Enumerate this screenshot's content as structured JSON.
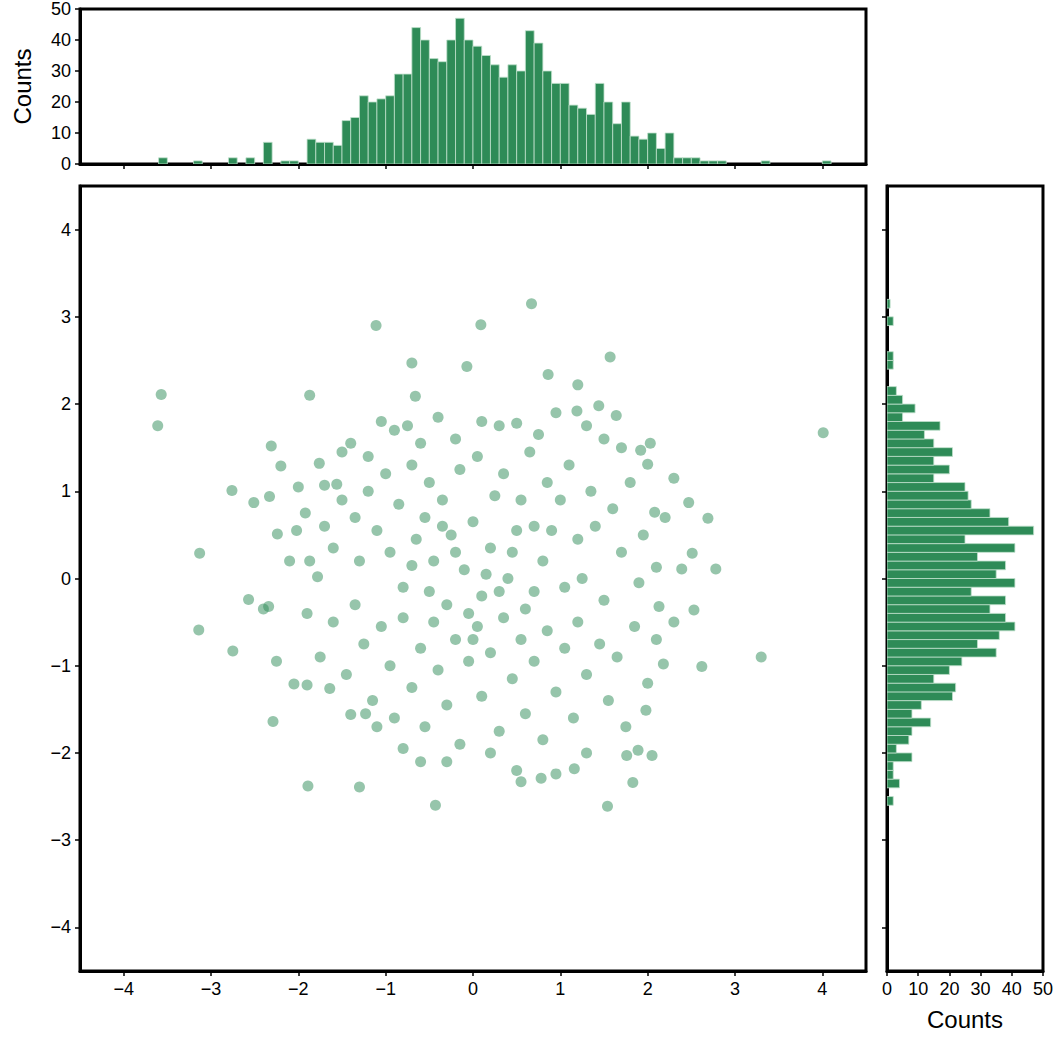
{
  "chart_data": [
    {
      "type": "scatter",
      "color": "#2e8b57",
      "marker": "circle",
      "xlim": [
        -4.5,
        4.5
      ],
      "xticks": [
        {
          "value": -4,
          "label": "−4"
        },
        {
          "value": -3,
          "label": "−3"
        },
        {
          "value": -2,
          "label": "−2"
        },
        {
          "value": -1,
          "label": "−1"
        },
        0,
        1,
        2,
        3,
        4
      ],
      "ylim": [
        -4.5,
        4.5
      ],
      "yticks": [
        {
          "value": -4,
          "label": "−4"
        },
        {
          "value": -3,
          "label": "−3"
        },
        {
          "value": -2,
          "label": "−2"
        },
        {
          "value": -1,
          "label": "−1"
        },
        0,
        1,
        2,
        3,
        4
      ],
      "x": [
        -3.57,
        -3.61,
        -3.13,
        -3.14,
        -2.76,
        -2.75,
        -2.57,
        -2.51,
        -2.33,
        -2.31,
        -2.34,
        -2.29,
        -2.24,
        -2.2,
        -2.25,
        -2.05,
        -2.02,
        -1.9,
        -1.89,
        -1.87,
        -1.92,
        -1.87,
        -1.78,
        -1.76,
        -1.7,
        -1.64,
        -1.56,
        -1.4,
        -1.3,
        -1.23,
        -1.11,
        -0.7,
        -0.66,
        -0.07,
        0.09,
        0.67,
        0.86,
        1.2,
        1.57,
        -0.43,
        0.55,
        0.78,
        0.95,
        1.16,
        1.54,
        1.83,
        1.76,
        2.05,
        1.89,
        2.1,
        2.39,
        2.51,
        2.69,
        2.47,
        2.78,
        2.53,
        2.13,
        2.62,
        3.3,
        4.01,
        2.18,
        2.03,
        2.0,
        1.92,
        2.08,
        1.98,
        1.64,
        1.44,
        1.19,
        -1.5,
        -1.4,
        -1.2,
        -1.05,
        -0.9,
        -0.75,
        -0.6,
        -0.4,
        -0.2,
        0.1,
        0.3,
        0.5,
        0.75,
        0.95,
        1.3,
        1.5,
        1.7,
        -1.7,
        -1.6,
        -1.5,
        -1.35,
        -1.3,
        -1.2,
        -1.1,
        -1.0,
        -0.95,
        -0.85,
        -0.8,
        -0.7,
        -0.65,
        -0.55,
        -0.5,
        -0.45,
        -0.35,
        -0.3,
        -0.25,
        -0.15,
        -0.1,
        0.0,
        0.05,
        0.1,
        0.2,
        0.25,
        0.35,
        0.4,
        0.5,
        0.55,
        0.6,
        0.65,
        0.7,
        0.8,
        0.85,
        0.9,
        1.0,
        1.05,
        1.1,
        1.2,
        1.25,
        1.35,
        1.4,
        1.5,
        1.6,
        1.7,
        1.8,
        1.9,
        1.95,
        -1.9,
        -1.75,
        -1.6,
        -1.45,
        -1.35,
        -1.25,
        -1.15,
        -1.05,
        -0.95,
        -0.9,
        -0.8,
        -0.7,
        -0.6,
        -0.55,
        -0.45,
        -0.4,
        -0.3,
        -0.2,
        -0.15,
        -0.05,
        0.05,
        0.1,
        0.2,
        0.3,
        0.35,
        0.45,
        0.55,
        0.6,
        0.7,
        0.8,
        0.85,
        0.95,
        1.05,
        1.15,
        1.2,
        1.3,
        1.45,
        1.55,
        1.65,
        1.75,
        1.85,
        2.0,
        2.1,
        -0.3,
        0.2,
        -0.8,
        1.3,
        -1.1,
        0.5,
        -0.6,
        -2.4,
        -2.1,
        2.2,
        2.3,
        -2.0,
        2.3,
        -0.2,
        0.15,
        -0.5,
        0.45,
        -0.05,
        0.3,
        -0.7,
        0.7,
        -0.35,
        0.0
      ],
      "values": [
        2.11,
        1.75,
        0.29,
        -0.59,
        1.01,
        -0.83,
        -0.24,
        0.87,
        0.94,
        1.52,
        -0.32,
        -1.64,
        0.51,
        1.29,
        -0.95,
        -1.21,
        0.55,
        -1.22,
        -2.38,
        2.1,
        0.75,
        0.2,
        0.02,
        1.32,
        1.07,
        -1.26,
        1.08,
        -1.56,
        -2.39,
        -1.55,
        2.9,
        2.47,
        2.09,
        2.43,
        2.91,
        3.15,
        2.34,
        2.22,
        2.54,
        -2.6,
        -2.33,
        -2.29,
        -2.24,
        -2.18,
        -2.61,
        -2.34,
        -2.03,
        -2.03,
        -1.97,
        0.13,
        0.11,
        0.29,
        0.69,
        0.87,
        0.11,
        -0.36,
        -0.32,
        -1.01,
        -0.9,
        1.67,
        -0.98,
        1.55,
        1.31,
        1.47,
        0.76,
        -1.51,
        1.87,
        1.98,
        1.92,
        1.45,
        1.55,
        1.4,
        1.8,
        1.7,
        1.75,
        1.55,
        1.85,
        1.6,
        1.8,
        1.75,
        1.78,
        1.65,
        1.9,
        1.75,
        1.6,
        1.5,
        0.6,
        0.35,
        0.9,
        0.7,
        0.2,
        1.0,
        0.55,
        1.2,
        0.3,
        0.85,
        -0.1,
        1.3,
        0.45,
        0.7,
        1.1,
        0.2,
        0.9,
        -0.3,
        0.5,
        1.25,
        0.1,
        0.65,
        1.4,
        -0.2,
        0.35,
        0.95,
        1.2,
        0.0,
        0.55,
        0.9,
        -0.35,
        1.45,
        0.6,
        0.2,
        1.1,
        0.55,
        0.9,
        -0.1,
        1.3,
        0.45,
        0.0,
        1.0,
        0.6,
        -0.25,
        0.8,
        0.3,
        1.1,
        -0.05,
        0.5,
        -0.4,
        -0.9,
        -0.5,
        -1.1,
        -0.3,
        -0.75,
        -1.4,
        -0.55,
        -1.0,
        -1.6,
        -0.45,
        -1.25,
        -0.8,
        -1.7,
        -0.5,
        -1.05,
        -1.45,
        -0.7,
        -1.9,
        -0.95,
        -0.55,
        -1.35,
        -0.85,
        -1.75,
        -0.45,
        -1.15,
        -0.7,
        -1.55,
        -0.95,
        -1.85,
        -0.6,
        -1.3,
        -0.8,
        -1.6,
        -0.5,
        -1.1,
        -0.75,
        -1.4,
        -0.9,
        -1.7,
        -0.55,
        -1.2,
        -0.7,
        -2.1,
        -2.0,
        -1.95,
        -2.0,
        -1.7,
        -2.2,
        -2.1,
        -0.35,
        0.2,
        0.7,
        -0.5,
        1.05,
        1.15,
        0.3,
        0.05,
        -0.15,
        0.3,
        -0.4,
        -0.15,
        0.15,
        -0.15,
        0.6,
        -0.7
      ]
    },
    {
      "type": "histogram",
      "color": "#2e8b57",
      "ylabel": "Counts",
      "tick_labels": "y",
      "xlim": [
        -4.5,
        4.5
      ],
      "xticks": [
        -4,
        -3,
        -2,
        -1,
        0,
        1,
        2,
        3,
        4
      ],
      "ylim": [
        0,
        50
      ],
      "yticks": [
        0,
        10,
        20,
        30,
        40,
        50
      ],
      "bins": [
        -3.7,
        -3.6,
        -3.5,
        -3.4,
        -3.3,
        -3.2,
        -3.1,
        -3.0,
        -2.9,
        -2.8,
        -2.7,
        -2.6,
        -2.5,
        -2.4,
        -2.3,
        -2.2,
        -2.1,
        -2.0,
        -1.9,
        -1.8,
        -1.7,
        -1.6,
        -1.5,
        -1.4,
        -1.3,
        -1.2,
        -1.1,
        -1.0,
        -0.9,
        -0.8,
        -0.7,
        -0.6,
        -0.5,
        -0.4,
        -0.3,
        -0.2,
        -0.1,
        0.0,
        0.1,
        0.2,
        0.3,
        0.4,
        0.5,
        0.6,
        0.7,
        0.8,
        0.9,
        1.0,
        1.1,
        1.2,
        1.3,
        1.4,
        1.5,
        1.6,
        1.7,
        1.8,
        1.9,
        2.0,
        2.1,
        2.2,
        2.3,
        2.4,
        2.5,
        2.6,
        2.7,
        2.8,
        2.9,
        3.0,
        3.1,
        3.2,
        3.3,
        3.4,
        3.5,
        3.6,
        3.7,
        3.8,
        3.9,
        4.0,
        4.1
      ],
      "values": [
        0,
        2,
        0,
        0,
        0,
        1,
        0,
        0,
        0,
        2,
        0,
        2,
        0,
        7,
        0,
        1,
        1,
        0,
        8,
        7,
        7,
        6,
        14,
        15,
        22,
        20,
        21,
        22,
        29,
        29,
        44,
        40,
        34,
        33,
        40,
        47,
        40,
        38,
        35,
        32,
        28,
        32,
        30,
        43,
        39,
        30,
        26,
        26,
        19,
        18,
        16,
        26,
        20,
        13,
        20,
        9,
        8,
        10,
        5,
        10,
        2,
        2,
        2,
        1,
        1,
        1,
        0,
        0,
        0,
        0,
        1,
        0,
        0,
        0,
        0,
        0,
        0,
        1
      ]
    },
    {
      "type": "histogram",
      "orientation": "horizontal",
      "color": "#2e8b57",
      "xlabel": "Counts",
      "tick_labels": "x",
      "xlim": [
        0,
        50
      ],
      "xticks": [
        0,
        10,
        20,
        30,
        40,
        50
      ],
      "ylim": [
        -4.5,
        4.5
      ],
      "yticks": [
        -4,
        -3,
        -2,
        -1,
        0,
        1,
        2,
        3,
        4
      ],
      "bins": [
        -2.7,
        -2.6,
        -2.5,
        -2.4,
        -2.3,
        -2.2,
        -2.1,
        -2.0,
        -1.9,
        -1.8,
        -1.7,
        -1.6,
        -1.5,
        -1.4,
        -1.3,
        -1.2,
        -1.1,
        -1.0,
        -0.9,
        -0.8,
        -0.7,
        -0.6,
        -0.5,
        -0.4,
        -0.3,
        -0.2,
        -0.1,
        0.0,
        0.1,
        0.2,
        0.3,
        0.4,
        0.5,
        0.6,
        0.7,
        0.8,
        0.9,
        1.0,
        1.1,
        1.2,
        1.3,
        1.4,
        1.5,
        1.6,
        1.7,
        1.8,
        1.9,
        2.0,
        2.1,
        2.2,
        2.3,
        2.4,
        2.5,
        2.6,
        2.7,
        2.8,
        2.9,
        3.0,
        3.1,
        3.2
      ],
      "values": [
        0,
        2,
        0,
        4,
        2,
        2,
        8,
        3,
        7,
        8,
        14,
        8,
        11,
        21,
        22,
        15,
        20,
        24,
        35,
        29,
        36,
        41,
        38,
        33,
        38,
        27,
        41,
        35,
        38,
        29,
        41,
        25,
        47,
        39,
        33,
        27,
        26,
        25,
        15,
        20,
        15,
        21,
        15,
        12,
        17,
        5,
        9,
        5,
        3,
        0,
        0,
        2,
        2,
        0,
        0,
        0,
        2,
        0,
        1
      ]
    }
  ]
}
